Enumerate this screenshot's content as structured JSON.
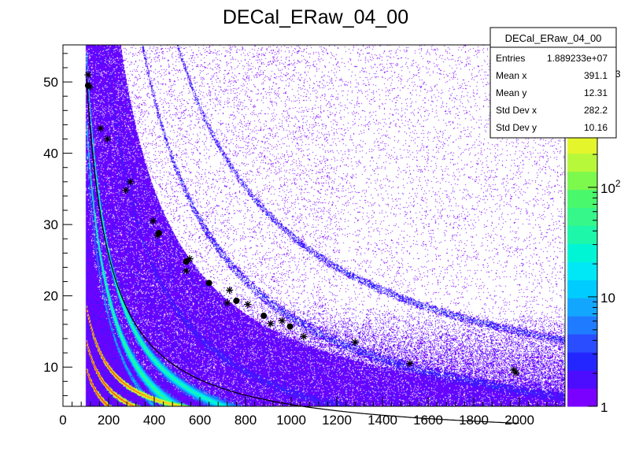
{
  "title": "DECal_ERaw_04_00",
  "stats": {
    "name": "DECal_ERaw_04_00",
    "rows": [
      {
        "label": "Entries",
        "value": "1.889233e+07"
      },
      {
        "label": "Mean x",
        "value": "391.1"
      },
      {
        "label": "Mean y",
        "value": "12.31"
      },
      {
        "label": "Std Dev x",
        "value": "282.2"
      },
      {
        "label": "Std Dev y",
        "value": "10.16"
      }
    ]
  },
  "chart_data": {
    "type": "heatmap",
    "title": "DECal_ERaw_04_00",
    "xlabel": "",
    "ylabel": "",
    "xlim": [
      0,
      2200
    ],
    "ylim": [
      4.5,
      55.2
    ],
    "x_ticks": [
      0,
      200,
      400,
      600,
      800,
      1000,
      1200,
      1400,
      1600,
      1800,
      2000
    ],
    "y_ticks": [
      10,
      20,
      30,
      40,
      50
    ],
    "x_data_start": 100,
    "z_scale": "log",
    "z_ticks": [
      {
        "value": 1,
        "label": "1"
      },
      {
        "value": 10,
        "label": "10"
      },
      {
        "value": 100,
        "label": "10",
        "exp": "2"
      },
      {
        "value": 1000,
        "label": "10",
        "exp": "3"
      }
    ],
    "palette": [
      "#7a00ff",
      "#4c0dff",
      "#2426ff",
      "#2a4dff",
      "#1f7bff",
      "#13a6ff",
      "#00ccff",
      "#00e7f5",
      "#00f5d5",
      "#1df7aa",
      "#35f78a",
      "#4af86c",
      "#7df94e",
      "#b8f83a",
      "#e4f52c",
      "#f7d820",
      "#f8a517",
      "#f56d10",
      "#ef3308",
      "#e60000"
    ],
    "bands": [
      {
        "A": 6000,
        "B": -4,
        "x_min": 103,
        "x_max": 2200,
        "half_width": 0.75,
        "density": "high"
      },
      {
        "A": 5200,
        "B": -6,
        "x_min": 103,
        "x_max": 2200,
        "half_width": 0.9,
        "density": "high"
      },
      {
        "A": 5000,
        "B": -8,
        "x_min": 103,
        "x_max": 2200,
        "half_width": 0.5,
        "density": "mid"
      },
      {
        "A": 11500,
        "B": -5,
        "x_min": 120,
        "x_max": 2200,
        "half_width": 0.55,
        "density": "low"
      },
      {
        "A": 20500,
        "B": -3.5,
        "x_min": 300,
        "x_max": 2200,
        "half_width": 0.6,
        "density": "low"
      },
      {
        "A": 27000,
        "B": 1.5,
        "x_min": 480,
        "x_max": 2200,
        "half_width": 0.45,
        "density": "low"
      },
      {
        "A": 1800,
        "B": 1,
        "x_min": 103,
        "x_max": 1100,
        "half_width": 0.35,
        "density": "peak"
      },
      {
        "A": 1400,
        "B": 0,
        "x_min": 103,
        "x_max": 1100,
        "half_width": 0.35,
        "density": "peak"
      },
      {
        "A": 1100,
        "B": -1,
        "x_min": 103,
        "x_max": 1100,
        "half_width": 0.35,
        "density": "peak"
      }
    ],
    "fit_curve": {
      "A": 5250,
      "B": -0.5,
      "x_min": 103,
      "x_max": 2000
    },
    "markers_star": [
      [
        110,
        51
      ],
      [
        118,
        49.3
      ],
      [
        165,
        43.5
      ],
      [
        195,
        42
      ],
      [
        275,
        34.8
      ],
      [
        295,
        36
      ],
      [
        395,
        30.5
      ],
      [
        415,
        28.5
      ],
      [
        540,
        23.5
      ],
      [
        555,
        25.2
      ],
      [
        720,
        19
      ],
      [
        730,
        20.8
      ],
      [
        810,
        18.8
      ],
      [
        910,
        16.1
      ],
      [
        960,
        16.5
      ],
      [
        1055,
        14.3
      ],
      [
        1280,
        13.5
      ],
      [
        1520,
        10.5
      ],
      [
        1975,
        9.6
      ],
      [
        1985,
        9.2
      ]
    ],
    "markers_dot": [
      [
        110,
        49.5
      ],
      [
        420,
        28.8
      ],
      [
        540,
        24.8
      ],
      [
        640,
        21.8
      ],
      [
        760,
        19.3
      ],
      [
        880,
        17.2
      ],
      [
        995,
        15.7
      ]
    ]
  }
}
